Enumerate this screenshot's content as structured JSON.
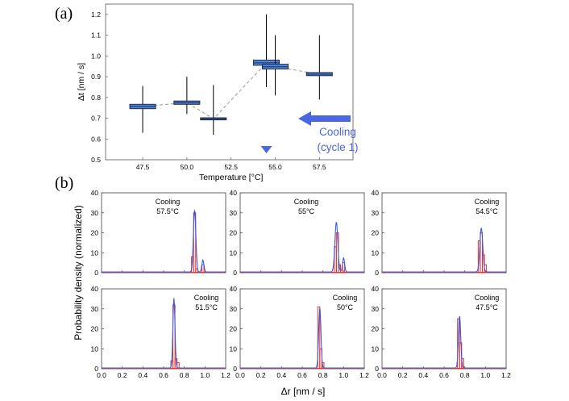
{
  "panel_labels": {
    "a": "(a)",
    "b": "(b)"
  },
  "colors": {
    "box_fill": "#4f86e0",
    "whisker": "#000000",
    "dash_line": "#9a9a9a",
    "arrow": "#4a66e0",
    "hist_blue": "#3b5bdb",
    "hist_red": "#e8302a"
  },
  "chart_data": [
    {
      "id": "a",
      "type": "box",
      "title": "",
      "xlabel": "Temperature [°C]",
      "ylabel": "Δt [nm / s]",
      "xlim": [
        45.4,
        59.4
      ],
      "ylim": [
        0.5,
        1.25
      ],
      "xticks": [
        "47.5",
        "50.0",
        "52.5",
        "55.0",
        "57.5"
      ],
      "xtick_values": [
        47.5,
        50.0,
        52.5,
        55.0,
        57.5
      ],
      "yticks": [
        "0.5",
        "0.6",
        "0.7",
        "0.8",
        "0.9",
        "1.0",
        "1.1",
        "1.2"
      ],
      "ytick_values": [
        0.5,
        0.6,
        0.7,
        0.8,
        0.9,
        1.0,
        1.1,
        1.2
      ],
      "points": [
        {
          "x": 47.5,
          "median": 0.757,
          "q1": 0.746,
          "q3": 0.767,
          "min": 0.63,
          "max": 0.855
        },
        {
          "x": 50.0,
          "median": 0.775,
          "q1": 0.767,
          "q3": 0.783,
          "min": 0.72,
          "max": 0.9
        },
        {
          "x": 51.5,
          "median": 0.697,
          "q1": 0.692,
          "q3": 0.702,
          "min": 0.62,
          "max": 0.86
        },
        {
          "x": 54.5,
          "median": 0.967,
          "q1": 0.955,
          "q3": 0.98,
          "min": 0.85,
          "max": 1.2
        },
        {
          "x": 55.0,
          "median": 0.948,
          "q1": 0.937,
          "q3": 0.96,
          "min": 0.81,
          "max": 1.1
        },
        {
          "x": 57.5,
          "median": 0.912,
          "q1": 0.905,
          "q3": 0.92,
          "min": 0.79,
          "max": 1.1
        }
      ],
      "marker_x": 54.5,
      "annotation": {
        "line1": "Cooling",
        "line2": "(cycle 1)",
        "arrow_direction": "left"
      }
    },
    {
      "id": "b",
      "type": "histogram-grid",
      "xlabel": "Δr [nm / s]",
      "ylabel": "Probability density (normalized)",
      "xlim": [
        0.0,
        1.2
      ],
      "ylim": [
        0,
        40
      ],
      "xticks": [
        "0.0",
        "0.2",
        "0.4",
        "0.6",
        "0.8",
        "1.0",
        "1.2"
      ],
      "xtick_values": [
        0.0,
        0.2,
        0.4,
        0.6,
        0.8,
        1.0,
        1.2
      ],
      "yticks": [
        "0",
        "10",
        "20",
        "30",
        "40"
      ],
      "ytick_values": [
        0,
        10,
        20,
        30,
        40
      ],
      "bin_width": 0.02,
      "panels": [
        {
          "label_line1": "Cooling",
          "label_line2": "57.5°C",
          "label_pos": "left",
          "peaks": [
            {
              "x": 0.9,
              "h": 31,
              "w": 0.012
            },
            {
              "x": 0.98,
              "h": 6,
              "w": 0.01
            }
          ],
          "bars": [
            {
              "x": 0.88,
              "h": 8
            },
            {
              "x": 0.9,
              "h": 30
            },
            {
              "x": 0.92,
              "h": 2
            },
            {
              "x": 0.98,
              "h": 4
            }
          ]
        },
        {
          "label_line1": "Cooling",
          "label_line2": "55°C",
          "label_pos": "left",
          "peaks": [
            {
              "x": 0.93,
              "h": 25,
              "w": 0.014
            },
            {
              "x": 1.0,
              "h": 7,
              "w": 0.01
            }
          ],
          "bars": [
            {
              "x": 0.92,
              "h": 13
            },
            {
              "x": 0.94,
              "h": 20
            },
            {
              "x": 0.96,
              "h": 4
            },
            {
              "x": 1.0,
              "h": 5
            }
          ]
        },
        {
          "label_line1": "Cooling",
          "label_line2": "54.5°C",
          "label_pos": "right",
          "peaks": [
            {
              "x": 0.96,
              "h": 22,
              "w": 0.014
            }
          ],
          "bars": [
            {
              "x": 0.94,
              "h": 16
            },
            {
              "x": 0.96,
              "h": 20
            },
            {
              "x": 0.98,
              "h": 9
            },
            {
              "x": 1.0,
              "h": 4
            }
          ]
        },
        {
          "label_line1": "Cooling",
          "label_line2": "51.5°C",
          "label_pos": "right",
          "peaks": [
            {
              "x": 0.7,
              "h": 35,
              "w": 0.01
            }
          ],
          "bars": [
            {
              "x": 0.68,
              "h": 4
            },
            {
              "x": 0.7,
              "h": 32
            },
            {
              "x": 0.72,
              "h": 5
            },
            {
              "x": 0.74,
              "h": 3
            }
          ]
        },
        {
          "label_line1": "Cooling",
          "label_line2": "50°C",
          "label_pos": "right",
          "peaks": [
            {
              "x": 0.77,
              "h": 30,
              "w": 0.011
            }
          ],
          "bars": [
            {
              "x": 0.76,
              "h": 31
            },
            {
              "x": 0.78,
              "h": 10
            },
            {
              "x": 0.8,
              "h": 3
            }
          ]
        },
        {
          "label_line1": "Cooling",
          "label_line2": "47.5°C",
          "label_pos": "right",
          "peaks": [
            {
              "x": 0.75,
              "h": 26,
              "w": 0.011
            }
          ],
          "bars": [
            {
              "x": 0.74,
              "h": 25
            },
            {
              "x": 0.76,
              "h": 13
            },
            {
              "x": 0.78,
              "h": 5
            }
          ]
        }
      ]
    }
  ]
}
